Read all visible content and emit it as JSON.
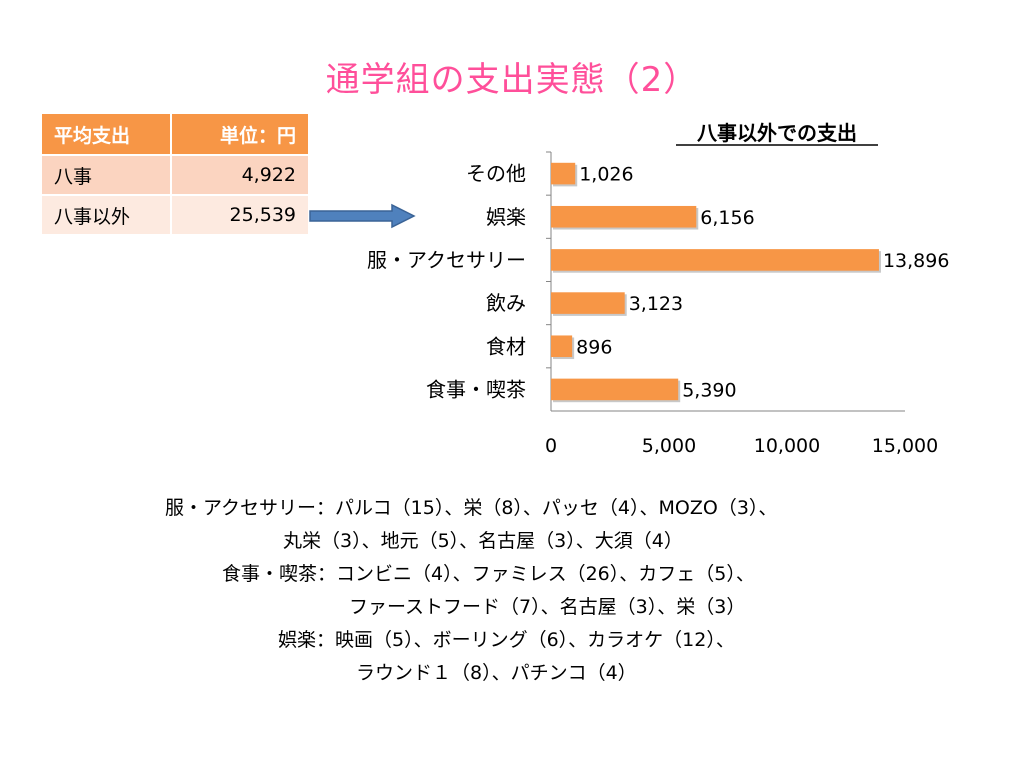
{
  "title": "通学組の支出実態（2）",
  "summary_table": {
    "headers": [
      "平均支出",
      "単位：円"
    ],
    "rows": [
      {
        "label": "八事",
        "value": "4,922"
      },
      {
        "label": "八事以外",
        "value": "25,539"
      }
    ]
  },
  "notes": [
    "服・アクセサリー：パルコ（15）、栄（8）、パッセ（4）、MOZO（3）、",
    "丸栄（3）、地元（5）、名古屋（3）、大須（4）",
    "食事・喫茶：コンビニ（4）、ファミレス（26）、カフェ（5）、",
    "ファーストフード（7）、名古屋（3）、栄（3）",
    "娯楽：映画（5）、ボーリング（6）、カラオケ（12）、",
    "ラウンド１（8）、パチンコ（4）"
  ],
  "colors": {
    "title": "#ff4f9a",
    "bar": "#f79646",
    "header": "#f79646",
    "arrow": "#4f81bd"
  },
  "chart_data": {
    "type": "bar",
    "orientation": "horizontal",
    "title": "八事以外での支出",
    "categories": [
      "その他",
      "娯楽",
      "服・アクセサリー",
      "飲み",
      "食材",
      "食事・喫茶"
    ],
    "values": [
      1026,
      6156,
      13896,
      3123,
      896,
      5390
    ],
    "value_labels": [
      "1,026",
      "6,156",
      "13,896",
      "3,123",
      "896",
      "5,390"
    ],
    "x_ticks": [
      0,
      5000,
      10000,
      15000
    ],
    "x_tick_labels": [
      "0",
      "5,000",
      "10,000",
      "15,000"
    ],
    "xlim": [
      0,
      15000
    ],
    "grid": false,
    "legend": "none"
  }
}
